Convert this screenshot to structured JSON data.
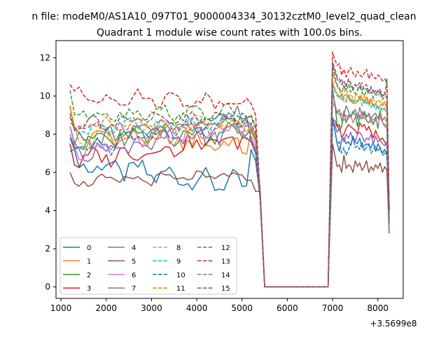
{
  "chart_data": {
    "type": "line",
    "suptitle": "n file: modeM0/AS1A10_097T01_9000004334_30132cztM0_level2_quad_clean",
    "title": "Quadrant 1 module wise count rates with 100.0s bins.",
    "xlabel": "",
    "ylabel": "",
    "x_offset_label": "+3.5699e8",
    "xlim": [
      890,
      8560
    ],
    "ylim": [
      -0.6,
      12.9
    ],
    "xticks": [
      1000,
      2000,
      3000,
      4000,
      5000,
      6000,
      7000,
      8000
    ],
    "yticks": [
      0,
      2,
      4,
      6,
      8,
      10,
      12
    ],
    "grid": false,
    "legend_position": "lower-left",
    "colors": [
      "#1f77b4",
      "#ff7f0e",
      "#2ca02c",
      "#d62728",
      "#9467bd",
      "#8c564b",
      "#e377c2",
      "#7f7f7f",
      "#bcbd22",
      "#17becf"
    ],
    "series": [
      {
        "name": "0",
        "dashed": false,
        "start": 7.8,
        "lvl": 6.5,
        "slope": -0.4,
        "amp": 0.6,
        "phase": 0.5,
        "end": 7.2,
        "after": [
          8.9,
          8.2,
          7.5,
          7.1,
          7.7,
          7.8,
          7.5,
          7.6,
          7.4,
          7.9,
          7.6,
          7.5,
          7.8,
          7.3,
          7.4,
          7.5,
          7.4,
          7.3,
          7.6,
          7.1,
          7.5,
          7.3,
          7.0,
          7.2,
          6.9,
          4.2
        ]
      },
      {
        "name": "1",
        "dashed": false,
        "start": 9.4,
        "lvl": 8.0,
        "slope": -0.2,
        "amp": 0.5,
        "phase": 1.2,
        "end": 8.2,
        "after": [
          10.6,
          10.3,
          10.1,
          10.0,
          9.8,
          10.0,
          10.1,
          9.9,
          9.7,
          9.8,
          9.6,
          9.7,
          10.0,
          9.8,
          9.7,
          9.9,
          9.6,
          9.8,
          9.5,
          9.6,
          9.4,
          9.5,
          9.6,
          9.7,
          9.4,
          3.9
        ]
      },
      {
        "name": "2",
        "dashed": false,
        "start": 8.0,
        "lvl": 7.6,
        "slope": 0.2,
        "amp": 0.6,
        "phase": 2.0,
        "end": 8.3,
        "after": [
          10.2,
          9.6,
          8.5,
          8.2,
          8.4,
          9.2,
          8.6,
          9.0,
          8.9,
          9.2,
          9.0,
          8.4,
          9.0,
          8.8,
          9.1,
          8.7,
          8.6,
          8.8,
          8.5,
          8.9,
          8.3,
          9.2,
          8.6,
          8.5,
          8.4,
          4.0
        ]
      },
      {
        "name": "3",
        "dashed": false,
        "start": 7.5,
        "lvl": 6.6,
        "slope": 0.4,
        "amp": 0.5,
        "phase": 3.1,
        "end": 7.6,
        "after": [
          8.8,
          8.7,
          8.4,
          8.5,
          7.8,
          8.0,
          8.3,
          8.5,
          8.4,
          8.3,
          8.2,
          8.0,
          8.6,
          8.4,
          8.5,
          8.2,
          8.4,
          8.1,
          7.8,
          8.2,
          7.9,
          7.7,
          7.8,
          7.6,
          7.4,
          3.5
        ]
      },
      {
        "name": "4",
        "dashed": false,
        "start": 8.4,
        "lvl": 7.0,
        "slope": 0.4,
        "amp": 0.5,
        "phase": 0.8,
        "end": 7.7,
        "after": [
          8.6,
          8.5,
          8.1,
          8.3,
          7.9,
          7.6,
          8.0,
          7.8,
          8.1,
          7.7,
          7.6,
          8.0,
          8.1,
          7.9,
          7.6,
          7.8,
          7.7,
          8.0,
          7.5,
          7.9,
          7.6,
          7.7,
          7.5,
          7.4,
          7.6,
          3.4
        ]
      },
      {
        "name": "5",
        "dashed": false,
        "start": 6.0,
        "lvl": 5.5,
        "slope": 0.1,
        "amp": 0.3,
        "phase": 1.7,
        "end": 5.6,
        "after": [
          7.5,
          6.9,
          6.3,
          6.4,
          6.0,
          6.9,
          6.2,
          6.4,
          6.3,
          6.0,
          6.6,
          6.3,
          6.5,
          6.1,
          6.3,
          6.6,
          6.0,
          6.3,
          6.1,
          6.4,
          6.2,
          6.5,
          6.0,
          6.3,
          6.1,
          2.8
        ]
      },
      {
        "name": "6",
        "dashed": false,
        "start": 8.0,
        "lvl": 7.2,
        "slope": 0.4,
        "amp": 0.5,
        "phase": 2.6,
        "end": 7.9,
        "after": [
          9.7,
          9.4,
          9.2,
          9.0,
          9.1,
          8.7,
          9.0,
          8.8,
          9.0,
          8.6,
          8.9,
          9.1,
          8.7,
          9.2,
          8.8,
          8.9,
          9.0,
          8.6,
          8.8,
          8.7,
          8.5,
          8.9,
          8.6,
          8.4,
          8.3,
          3.8
        ]
      },
      {
        "name": "7",
        "dashed": false,
        "start": 7.8,
        "lvl": 7.5,
        "slope": 0.5,
        "amp": 0.5,
        "phase": 0.3,
        "end": 8.3,
        "after": [
          10.4,
          9.6,
          9.1,
          9.3,
          8.7,
          9.0,
          9.5,
          9.2,
          8.9,
          9.1,
          9.3,
          8.8,
          9.4,
          9.0,
          9.2,
          8.9,
          9.1,
          8.8,
          9.0,
          9.1,
          8.8,
          9.2,
          8.7,
          8.9,
          8.6,
          4.0
        ]
      },
      {
        "name": "8",
        "dashed": true,
        "start": 8.6,
        "lvl": 7.8,
        "slope": 0.3,
        "amp": 0.5,
        "phase": 1.4,
        "end": 8.4,
        "after": [
          10.8,
          10.4,
          10.1,
          9.9,
          10.1,
          9.7,
          9.9,
          10.0,
          9.8,
          9.6,
          9.9,
          9.7,
          9.8,
          10.0,
          9.6,
          9.8,
          9.5,
          9.7,
          9.4,
          9.6,
          9.3,
          9.5,
          9.2,
          9.4,
          9.1,
          3.9
        ]
      },
      {
        "name": "9",
        "dashed": true,
        "start": 8.9,
        "lvl": 8.3,
        "slope": 0.1,
        "amp": 0.4,
        "phase": 2.2,
        "end": 8.5,
        "after": [
          10.6,
          10.3,
          10.0,
          9.9,
          10.1,
          9.8,
          9.7,
          10.0,
          9.9,
          9.6,
          9.8,
          9.7,
          9.9,
          9.5,
          9.8,
          9.6,
          9.7,
          9.4,
          9.6,
          9.3,
          9.5,
          9.2,
          9.4,
          9.3,
          9.1,
          3.8
        ]
      },
      {
        "name": "10",
        "dashed": true,
        "start": 7.1,
        "lvl": 7.1,
        "slope": 0.6,
        "amp": 0.5,
        "phase": 2.9,
        "end": 7.7,
        "after": [
          8.8,
          8.2,
          7.5,
          7.6,
          7.0,
          7.3,
          6.9,
          7.2,
          7.4,
          7.8,
          7.3,
          7.4,
          7.2,
          7.6,
          7.1,
          7.3,
          7.5,
          7.0,
          7.2,
          7.4,
          7.1,
          7.3,
          6.9,
          7.0,
          7.1,
          3.3
        ]
      },
      {
        "name": "11",
        "dashed": true,
        "start": 9.5,
        "lvl": 8.4,
        "slope": 0.0,
        "amp": 0.4,
        "phase": 0.6,
        "end": 8.5,
        "after": [
          11.3,
          10.8,
          10.5,
          10.3,
          10.0,
          10.2,
          10.4,
          10.0,
          10.1,
          9.9,
          10.0,
          10.1,
          9.8,
          10.2,
          9.9,
          10.0,
          9.7,
          9.9,
          9.8,
          9.6,
          9.8,
          9.7,
          9.5,
          9.6,
          9.4,
          3.9
        ]
      },
      {
        "name": "12",
        "dashed": true,
        "start": 10.3,
        "lvl": 9.1,
        "slope": 0.0,
        "amp": 0.4,
        "phase": 1.9,
        "end": 9.0,
        "after": [
          11.6,
          11.0,
          10.6,
          10.4,
          10.2,
          10.5,
          10.3,
          10.6,
          10.2,
          10.4,
          10.1,
          10.3,
          10.5,
          10.2,
          10.0,
          10.3,
          10.1,
          10.2,
          9.9,
          10.1,
          10.0,
          10.2,
          9.8,
          10.0,
          10.9,
          4.0
        ]
      },
      {
        "name": "13",
        "dashed": true,
        "start": 10.6,
        "lvl": 10.0,
        "slope": -0.1,
        "amp": 0.4,
        "phase": 0.1,
        "end": 9.6,
        "after": [
          12.3,
          11.9,
          11.6,
          11.7,
          11.1,
          11.4,
          11.0,
          11.3,
          11.5,
          11.2,
          11.0,
          11.3,
          11.1,
          11.0,
          11.2,
          11.4,
          10.9,
          11.2,
          11.0,
          10.9,
          11.1,
          11.0,
          10.8,
          10.9,
          10.7,
          4.1
        ]
      },
      {
        "name": "14",
        "dashed": true,
        "start": 8.9,
        "lvl": 8.3,
        "slope": 0.1,
        "amp": 0.5,
        "phase": 2.4,
        "end": 8.6,
        "after": [
          11.6,
          11.3,
          10.9,
          10.7,
          10.9,
          10.4,
          10.6,
          10.8,
          10.5,
          10.3,
          10.6,
          10.4,
          10.5,
          10.7,
          10.3,
          10.4,
          10.2,
          10.5,
          10.1,
          10.3,
          10.2,
          10.4,
          10.0,
          10.2,
          9.9,
          3.9
        ]
      },
      {
        "name": "15",
        "dashed": true,
        "start": 9.1,
        "lvl": 8.6,
        "slope": 0.1,
        "amp": 0.4,
        "phase": 3.3,
        "end": 8.9,
        "after": [
          11.8,
          11.4,
          11.0,
          10.9,
          10.6,
          10.8,
          10.5,
          10.9,
          10.7,
          10.4,
          10.6,
          10.5,
          10.7,
          10.3,
          10.5,
          10.6,
          10.2,
          10.4,
          10.3,
          10.1,
          10.3,
          10.2,
          10.0,
          10.1,
          9.9,
          4.0
        ]
      }
    ]
  }
}
